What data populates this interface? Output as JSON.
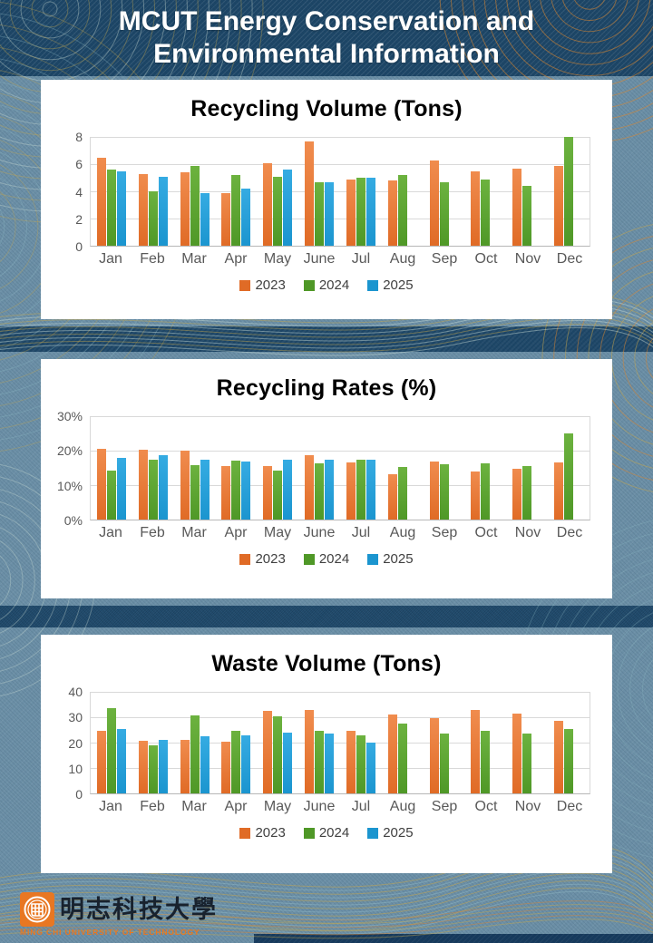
{
  "page_title": "MCUT Energy Conservation and Environmental Information",
  "header": {
    "title_line1": "MCUT Energy Conservation and",
    "title_line2": "Environmental Information"
  },
  "legend": {
    "items": [
      {
        "label": "2023",
        "color": "#e06b26",
        "color_top": "#f08c4e"
      },
      {
        "label": "2024",
        "color": "#4f9827",
        "color_top": "#6cb23f"
      },
      {
        "label": "2025",
        "color": "#1b95cf",
        "color_top": "#35abe2"
      }
    ]
  },
  "chart_data": [
    {
      "type": "bar",
      "title": "Recycling Volume (Tons)",
      "categories": [
        "Jan",
        "Feb",
        "Mar",
        "Apr",
        "May",
        "June",
        "Jul",
        "Aug",
        "Sep",
        "Oct",
        "Nov",
        "Dec"
      ],
      "ymax": 8,
      "ytick_values": [
        0,
        2,
        4,
        6,
        8
      ],
      "yticks": [
        "0",
        "2",
        "4",
        "6",
        "8"
      ],
      "grid": true,
      "legend_position": "bottom",
      "series": [
        {
          "name": "2023",
          "values": [
            6.5,
            5.3,
            5.4,
            3.9,
            6.1,
            7.7,
            4.9,
            4.8,
            6.3,
            5.5,
            5.7,
            5.9
          ]
        },
        {
          "name": "2024",
          "values": [
            5.6,
            4.0,
            5.9,
            5.2,
            5.1,
            4.7,
            5.0,
            5.2,
            4.7,
            4.9,
            4.4,
            8.0
          ]
        },
        {
          "name": "2025",
          "values": [
            5.5,
            5.1,
            3.9,
            4.2,
            5.6,
            4.7,
            5.0,
            null,
            null,
            null,
            null,
            null
          ]
        }
      ]
    },
    {
      "type": "bar",
      "title": "Recycling Rates (%)",
      "categories": [
        "Jan",
        "Feb",
        "Mar",
        "Apr",
        "May",
        "June",
        "Jul",
        "Aug",
        "Sep",
        "Oct",
        "Nov",
        "Dec"
      ],
      "ymax": 30,
      "ytick_values": [
        0,
        10,
        20,
        30
      ],
      "yticks": [
        "0%",
        "10%",
        "20%",
        "30%"
      ],
      "grid": true,
      "legend_position": "bottom",
      "series": [
        {
          "name": "2023",
          "values": [
            20.5,
            20.3,
            20.1,
            15.6,
            15.6,
            18.8,
            16.5,
            13.1,
            16.8,
            14.0,
            14.8,
            16.5
          ]
        },
        {
          "name": "2024",
          "values": [
            14.2,
            17.3,
            15.8,
            17.2,
            14.2,
            16.3,
            17.5,
            15.2,
            16.1,
            16.4,
            15.5,
            25.0
          ]
        },
        {
          "name": "2025",
          "values": [
            17.9,
            18.6,
            17.5,
            16.8,
            17.3,
            17.4,
            17.5,
            null,
            null,
            null,
            null,
            null
          ]
        }
      ]
    },
    {
      "type": "bar",
      "title": "Waste Volume (Tons)",
      "categories": [
        "Jan",
        "Feb",
        "Mar",
        "Apr",
        "May",
        "June",
        "Jul",
        "Aug",
        "Sep",
        "Oct",
        "Nov",
        "Dec"
      ],
      "ymax": 40,
      "ytick_values": [
        0,
        10,
        20,
        30,
        40
      ],
      "yticks": [
        "0",
        "10",
        "20",
        "30",
        "40"
      ],
      "grid": true,
      "legend_position": "bottom",
      "series": [
        {
          "name": "2023",
          "values": [
            24.8,
            20.6,
            21.0,
            20.5,
            32.4,
            33.0,
            24.5,
            30.9,
            29.7,
            33.0,
            31.6,
            28.6
          ]
        },
        {
          "name": "2024",
          "values": [
            33.6,
            18.8,
            30.7,
            24.8,
            30.4,
            24.6,
            22.8,
            27.5,
            23.6,
            24.8,
            23.6,
            25.2
          ]
        },
        {
          "name": "2025",
          "values": [
            25.2,
            21.2,
            22.4,
            23.0,
            23.9,
            23.6,
            20.0,
            null,
            null,
            null,
            null,
            null
          ]
        }
      ]
    }
  ],
  "footer": {
    "university_zh": "明志科技大學",
    "university_en": "MING CHI UNIVERSITY OF TECHNOLOGY"
  }
}
